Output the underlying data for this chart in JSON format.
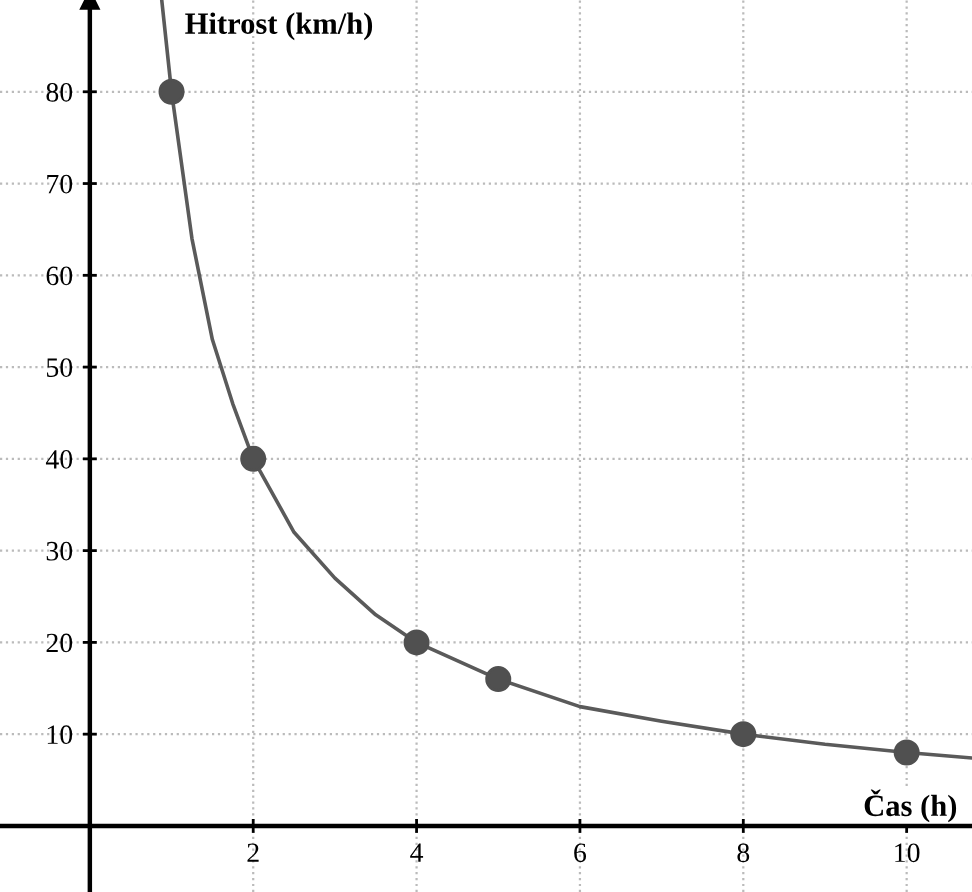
{
  "chart_data": {
    "type": "scatter",
    "xlabel": "Čas (h)",
    "ylabel": "Hitrost (km/h)",
    "series": [
      {
        "type": "line",
        "color": "#5a5a5a",
        "marker": "none",
        "x": [
          0.88,
          1,
          1.25,
          1.5,
          1.75,
          2,
          2.5,
          3,
          3.5,
          4,
          5,
          6,
          7,
          8,
          9,
          10,
          10.8
        ],
        "values": [
          90,
          80,
          64,
          53,
          46,
          40,
          32,
          27,
          23,
          20,
          16,
          13,
          11.4,
          10,
          8.9,
          8,
          7.4
        ]
      },
      {
        "color": "#505050",
        "marker": "circle",
        "x": [
          1,
          2,
          4,
          5,
          8,
          10
        ],
        "values": [
          80,
          40,
          20,
          16,
          10,
          8
        ]
      }
    ],
    "xlim": [
      -1.1,
      10.8
    ],
    "ylim": [
      -7.2,
      90
    ],
    "xticks": [
      2,
      4,
      6,
      8,
      10
    ],
    "yticks": [
      10,
      20,
      30,
      40,
      50,
      60,
      70,
      80
    ],
    "grid": true,
    "legend": false
  }
}
